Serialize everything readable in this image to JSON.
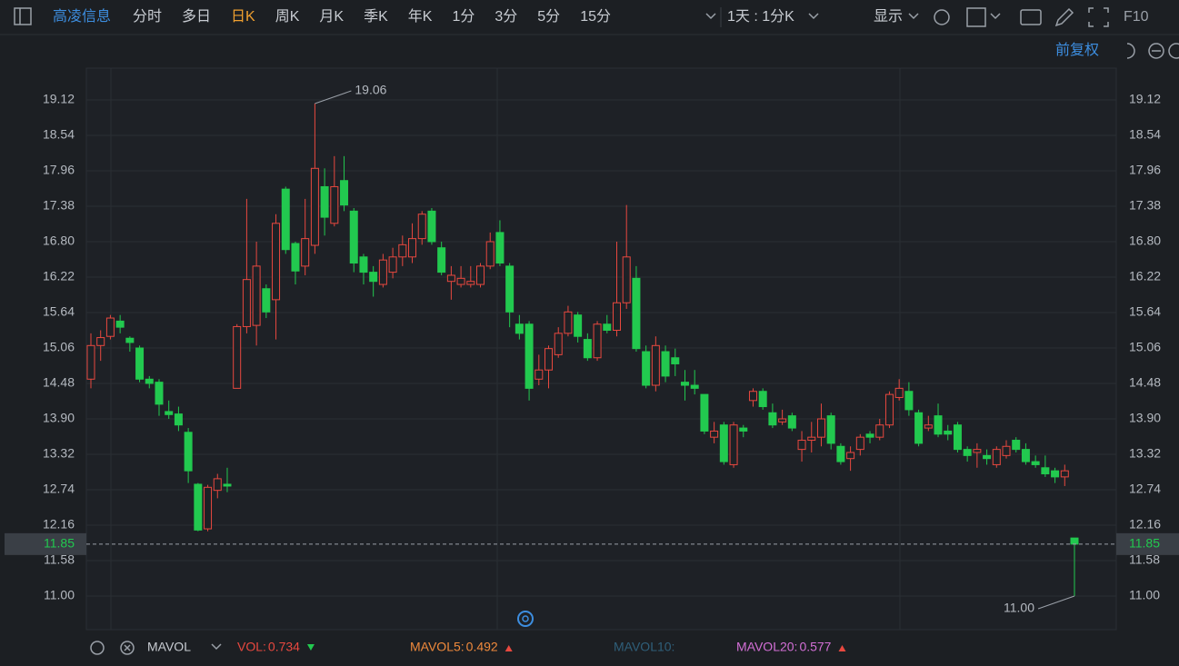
{
  "toolbar": {
    "stock_name": "高凌信息",
    "periods": [
      "分时",
      "多日",
      "日K",
      "周K",
      "月K",
      "季K",
      "年K",
      "1分",
      "3分",
      "5分",
      "15分"
    ],
    "selected_period": 2,
    "interval": "1天 : 1分K",
    "display": "显示",
    "f10": "F10"
  },
  "adjust": "前复权",
  "chart_data": {
    "type": "candlestick",
    "up_color": "#e8483f",
    "down_color": "#22c94f",
    "hollow_up": true,
    "grid": true,
    "open": [
      14.55,
      15.1,
      15.25,
      15.5,
      15.22,
      15.06,
      14.55,
      14.5,
      14.02,
      13.98,
      13.68,
      12.83,
      12.1,
      12.73,
      12.83,
      14.4,
      15.41,
      15.43,
      16.03,
      15.85,
      17.66,
      16.77,
      16.4,
      16.74,
      17.7,
      17.1,
      17.8,
      17.3,
      16.55,
      16.3,
      16.1,
      16.3,
      16.55,
      16.55,
      16.85,
      17.3,
      16.7,
      16.15,
      16.1,
      16.1,
      16.1,
      16.4,
      16.95,
      16.4,
      15.45,
      15.45,
      14.55,
      14.7,
      14.95,
      15.3,
      15.6,
      15.2,
      14.9,
      15.45,
      15.35,
      15.8,
      16.2,
      15.0,
      14.45,
      15.0,
      14.9,
      14.5,
      14.45,
      14.3,
      13.6,
      13.8,
      13.15,
      13.75,
      14.2,
      14.35,
      14.0,
      13.85,
      13.95,
      13.4,
      13.55,
      13.6,
      13.95,
      13.45,
      13.25,
      13.4,
      13.65,
      13.6,
      13.8,
      14.25,
      14.35,
      14.0,
      13.75,
      13.95,
      13.7,
      13.8,
      13.4,
      13.35,
      13.3,
      13.15,
      13.3,
      13.55,
      13.4,
      13.2,
      13.1,
      13.05,
      12.95,
      11.95
    ],
    "high": [
      15.3,
      15.35,
      15.6,
      15.6,
      15.25,
      15.1,
      14.6,
      14.55,
      14.2,
      14.1,
      13.75,
      12.85,
      12.82,
      13.0,
      13.1,
      15.45,
      17.5,
      16.8,
      16.1,
      17.25,
      17.7,
      16.8,
      17.5,
      19.06,
      18.0,
      18.2,
      18.2,
      17.35,
      16.6,
      16.4,
      16.6,
      16.7,
      16.9,
      17.1,
      17.3,
      17.35,
      16.8,
      16.4,
      16.4,
      16.4,
      16.45,
      16.95,
      17.15,
      16.45,
      15.6,
      15.5,
      14.95,
      15.1,
      15.4,
      15.75,
      15.65,
      15.3,
      15.5,
      15.6,
      16.8,
      17.4,
      16.4,
      15.1,
      15.25,
      15.1,
      15.05,
      14.7,
      14.7,
      14.3,
      13.85,
      13.85,
      13.85,
      13.8,
      14.4,
      14.4,
      14.15,
      14.05,
      14.0,
      13.7,
      13.85,
      14.15,
      14.0,
      13.5,
      13.45,
      13.65,
      13.7,
      13.9,
      14.35,
      14.55,
      14.5,
      14.05,
      13.95,
      14.15,
      13.8,
      13.85,
      13.45,
      13.5,
      13.4,
      13.45,
      13.55,
      13.6,
      13.5,
      13.3,
      13.3,
      13.1,
      13.15,
      11.95
    ],
    "low": [
      14.4,
      14.85,
      15.2,
      15.3,
      15.0,
      14.5,
      14.4,
      13.95,
      13.9,
      13.7,
      12.85,
      12.06,
      12.06,
      12.6,
      12.7,
      14.4,
      15.3,
      15.1,
      15.55,
      15.2,
      16.6,
      16.1,
      16.25,
      16.6,
      16.9,
      17.05,
      17.3,
      16.3,
      16.1,
      15.9,
      16.05,
      16.2,
      16.4,
      16.45,
      16.75,
      16.75,
      16.25,
      15.85,
      16.05,
      16.05,
      16.05,
      16.35,
      16.4,
      15.4,
      15.2,
      14.2,
      14.45,
      14.4,
      14.9,
      15.25,
      15.15,
      14.85,
      14.85,
      15.3,
      15.25,
      15.7,
      15.0,
      14.4,
      14.35,
      14.5,
      14.6,
      14.2,
      14.3,
      13.65,
      13.5,
      13.15,
      13.1,
      13.6,
      14.1,
      14.05,
      13.75,
      13.8,
      13.7,
      13.2,
      13.35,
      13.45,
      13.4,
      13.15,
      13.05,
      13.3,
      13.5,
      13.55,
      13.75,
      14.2,
      13.95,
      13.45,
      13.7,
      13.6,
      13.55,
      13.35,
      13.2,
      13.1,
      13.15,
      13.1,
      13.25,
      13.35,
      13.15,
      13.1,
      12.95,
      12.85,
      12.8,
      11.0
    ],
    "close": [
      15.1,
      15.23,
      15.55,
      15.4,
      15.15,
      14.55,
      14.48,
      14.14,
      13.97,
      13.8,
      13.05,
      12.08,
      12.78,
      12.92,
      12.8,
      15.41,
      16.18,
      16.4,
      15.65,
      17.1,
      16.67,
      16.32,
      16.85,
      18.0,
      17.2,
      17.7,
      17.4,
      16.45,
      16.3,
      16.15,
      16.5,
      16.55,
      16.75,
      16.85,
      17.25,
      16.8,
      16.3,
      16.25,
      16.2,
      16.15,
      16.4,
      16.8,
      16.45,
      15.65,
      15.3,
      14.4,
      14.7,
      15.05,
      15.3,
      15.65,
      15.25,
      14.9,
      15.45,
      15.35,
      15.8,
      16.55,
      15.05,
      14.45,
      15.1,
      14.6,
      14.8,
      14.45,
      14.4,
      13.7,
      13.7,
      13.2,
      13.8,
      13.7,
      14.35,
      14.1,
      13.8,
      13.9,
      13.75,
      13.55,
      13.6,
      13.9,
      13.5,
      13.2,
      13.35,
      13.6,
      13.6,
      13.8,
      14.3,
      14.4,
      14.05,
      13.5,
      13.8,
      13.65,
      13.65,
      13.4,
      13.3,
      13.4,
      13.25,
      13.4,
      13.45,
      13.4,
      13.2,
      13.15,
      13.0,
      12.95,
      13.05,
      11.85
    ],
    "ylim": [
      10.45,
      19.64
    ],
    "yticks": [
      {
        "value": 11,
        "label": "11.00"
      },
      11.58,
      12.16,
      12.74,
      13.32,
      {
        "value": 13.9,
        "label": "13.90"
      },
      14.48,
      15.06,
      15.64,
      16.22,
      {
        "value": 16.8,
        "label": "16.80"
      },
      17.38,
      17.96,
      18.54,
      19.12
    ],
    "last_price": 11.85,
    "max_label": 19.06,
    "min_label": {
      "value": 11,
      "label": "11.00"
    }
  },
  "indicators": {
    "name": "MAVOL",
    "items": [
      {
        "name": "VOL:",
        "value": 0.734,
        "color": "#e8483f",
        "trend": "down"
      },
      {
        "name": "MAVOL5:",
        "value": 0.492,
        "color": "#f08a3c",
        "trend": "up"
      },
      {
        "name": "MAVOL10:",
        "color": "#2f5f7a"
      },
      {
        "name": "MAVOL20:",
        "value": 0.577,
        "color": "#d36fd6",
        "trend": "up"
      }
    ]
  }
}
